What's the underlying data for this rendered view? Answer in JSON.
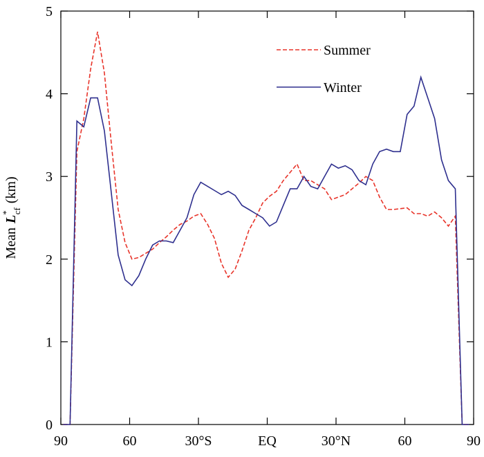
{
  "chart_data": {
    "type": "line",
    "ylabel": {
      "before": "Mean",
      "symbol": "L",
      "sup": "*",
      "sub": "cf",
      "after": "(km)"
    },
    "x": [
      -89,
      -86,
      -83,
      -80,
      -77,
      -74,
      -71,
      -68,
      -65,
      -62,
      -59,
      -56,
      -53,
      -50,
      -47,
      -44,
      -41,
      -38,
      -35,
      -32,
      -29,
      -26,
      -23,
      -20,
      -17,
      -14,
      -11,
      -8,
      -5,
      -2,
      1,
      4,
      7,
      10,
      13,
      16,
      19,
      22,
      25,
      28,
      31,
      34,
      37,
      40,
      43,
      46,
      49,
      52,
      55,
      58,
      61,
      64,
      67,
      70,
      73,
      76,
      79,
      82,
      85,
      88
    ],
    "series": [
      {
        "name": "Summer",
        "color": "#e8342a",
        "dash": true,
        "values": [
          0,
          0,
          3.3,
          3.7,
          4.3,
          4.75,
          4.25,
          3.4,
          2.6,
          2.2,
          2.0,
          2.02,
          2.07,
          2.12,
          2.2,
          2.27,
          2.35,
          2.42,
          2.46,
          2.52,
          2.55,
          2.42,
          2.25,
          1.95,
          1.78,
          1.88,
          2.1,
          2.35,
          2.5,
          2.68,
          2.76,
          2.82,
          2.95,
          3.05,
          3.15,
          2.95,
          2.95,
          2.9,
          2.85,
          2.72,
          2.75,
          2.78,
          2.85,
          2.92,
          3.0,
          2.95,
          2.75,
          2.6,
          2.6,
          2.61,
          2.62,
          2.55,
          2.55,
          2.52,
          2.57,
          2.5,
          2.4,
          2.52,
          0,
          0
        ]
      },
      {
        "name": "Winter",
        "color": "#2e2f8e",
        "dash": false,
        "values": [
          0,
          0,
          3.67,
          3.6,
          3.95,
          3.95,
          3.55,
          2.8,
          2.05,
          1.75,
          1.68,
          1.8,
          2.0,
          2.17,
          2.22,
          2.22,
          2.2,
          2.35,
          2.5,
          2.78,
          2.93,
          2.88,
          2.83,
          2.78,
          2.82,
          2.77,
          2.65,
          2.6,
          2.55,
          2.5,
          2.4,
          2.45,
          2.65,
          2.85,
          2.85,
          3.0,
          2.88,
          2.85,
          3.0,
          3.15,
          3.1,
          3.13,
          3.08,
          2.95,
          2.9,
          3.15,
          3.3,
          3.33,
          3.3,
          3.3,
          3.75,
          3.85,
          4.2,
          3.95,
          3.7,
          3.2,
          2.95,
          2.85,
          0,
          0
        ]
      }
    ],
    "xlim": [
      -90,
      90
    ],
    "xticks": [
      {
        "value": -90,
        "label": "90"
      },
      {
        "value": -60,
        "label": "60"
      },
      {
        "value": -30,
        "label": "30°S"
      },
      {
        "value": 0,
        "label": "EQ"
      },
      {
        "value": 30,
        "label": "30°N"
      },
      {
        "value": 60,
        "label": "60"
      },
      {
        "value": 90,
        "label": "90"
      }
    ],
    "ylim": [
      0,
      5
    ],
    "yticks": [
      0,
      1,
      2,
      3,
      4,
      5
    ],
    "grid": false,
    "legend": "upper right"
  }
}
